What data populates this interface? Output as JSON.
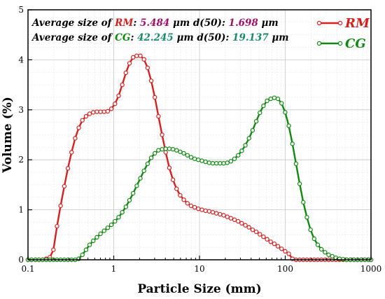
{
  "chart_data": {
    "type": "line",
    "xlabel": "Particle Size (mm)",
    "ylabel": "Volume (%)",
    "x_scale": "log",
    "xlim": [
      0.1,
      1000
    ],
    "ylim": [
      0,
      5
    ],
    "x_ticks": [
      {
        "value": 0.1,
        "label": "0.1"
      },
      {
        "value": 1,
        "label": "1"
      },
      {
        "value": 10,
        "label": "10"
      },
      {
        "value": 100,
        "label": "100"
      },
      {
        "value": 1000,
        "label": "1000"
      }
    ],
    "y_ticks": [
      {
        "value": 0,
        "label": "0"
      },
      {
        "value": 1,
        "label": "1"
      },
      {
        "value": 2,
        "label": "2"
      },
      {
        "value": 3,
        "label": "3"
      },
      {
        "value": 4,
        "label": "4"
      },
      {
        "value": 5,
        "label": "5"
      }
    ],
    "grid": true,
    "legend_position": "top-right",
    "series": [
      {
        "name": "RM",
        "color": "#d42020",
        "marker_fill": "#ffffff",
        "points": [
          [
            0.1,
            0
          ],
          [
            0.11,
            0
          ],
          [
            0.122,
            0
          ],
          [
            0.134,
            0
          ],
          [
            0.148,
            0
          ],
          [
            0.163,
            0.02
          ],
          [
            0.18,
            0.05
          ],
          [
            0.198,
            0.2
          ],
          [
            0.218,
            0.67
          ],
          [
            0.24,
            1.08
          ],
          [
            0.265,
            1.47
          ],
          [
            0.292,
            1.83
          ],
          [
            0.322,
            2.15
          ],
          [
            0.355,
            2.43
          ],
          [
            0.391,
            2.64
          ],
          [
            0.431,
            2.79
          ],
          [
            0.475,
            2.87
          ],
          [
            0.523,
            2.92
          ],
          [
            0.577,
            2.95
          ],
          [
            0.636,
            2.96
          ],
          [
            0.701,
            2.96
          ],
          [
            0.772,
            2.96
          ],
          [
            0.851,
            2.97
          ],
          [
            0.938,
            3.02
          ],
          [
            1.034,
            3.12
          ],
          [
            1.14,
            3.28
          ],
          [
            1.256,
            3.5
          ],
          [
            1.385,
            3.74
          ],
          [
            1.526,
            3.93
          ],
          [
            1.682,
            4.05
          ],
          [
            1.854,
            4.08
          ],
          [
            2.043,
            4.08
          ],
          [
            2.252,
            4.01
          ],
          [
            2.482,
            3.84
          ],
          [
            2.735,
            3.58
          ],
          [
            3.015,
            3.25
          ],
          [
            3.322,
            2.87
          ],
          [
            3.662,
            2.5
          ],
          [
            4.036,
            2.15
          ],
          [
            4.448,
            1.84
          ],
          [
            4.902,
            1.6
          ],
          [
            5.403,
            1.42
          ],
          [
            5.954,
            1.29
          ],
          [
            6.562,
            1.2
          ],
          [
            7.232,
            1.13
          ],
          [
            7.971,
            1.08
          ],
          [
            8.785,
            1.05
          ],
          [
            9.682,
            1.02
          ],
          [
            10.67,
            1.0
          ],
          [
            11.76,
            0.98
          ],
          [
            12.96,
            0.97
          ],
          [
            14.29,
            0.95
          ],
          [
            15.75,
            0.93
          ],
          [
            17.35,
            0.91
          ],
          [
            19.13,
            0.89
          ],
          [
            21.08,
            0.86
          ],
          [
            23.23,
            0.83
          ],
          [
            25.6,
            0.8
          ],
          [
            28.22,
            0.77
          ],
          [
            31.1,
            0.73
          ],
          [
            34.27,
            0.69
          ],
          [
            37.77,
            0.65
          ],
          [
            41.63,
            0.6
          ],
          [
            45.88,
            0.56
          ],
          [
            50.56,
            0.51
          ],
          [
            55.72,
            0.46
          ],
          [
            61.41,
            0.41
          ],
          [
            67.68,
            0.36
          ],
          [
            74.59,
            0.32
          ],
          [
            82.2,
            0.27
          ],
          [
            90.59,
            0.22
          ],
          [
            99.84,
            0.17
          ],
          [
            110,
            0.12
          ],
          [
            121.3,
            0.02
          ],
          [
            133.6,
            0
          ],
          [
            147.3,
            0
          ],
          [
            162.3,
            0
          ],
          [
            178.9,
            0
          ],
          [
            197.2,
            0
          ],
          [
            217.3,
            0
          ],
          [
            239.5,
            0
          ],
          [
            263.9,
            0
          ],
          [
            290.9,
            0
          ],
          [
            320.6,
            0
          ],
          [
            353.3,
            0
          ],
          [
            389.4,
            0
          ],
          [
            429.1,
            0
          ],
          [
            472.9,
            0
          ],
          [
            521.2,
            0
          ],
          [
            574.4,
            0
          ],
          [
            633.1,
            0
          ],
          [
            697.7,
            0
          ],
          [
            768.9,
            0
          ],
          [
            847.4,
            0
          ],
          [
            933.9,
            0
          ],
          [
            1000,
            0
          ]
        ]
      },
      {
        "name": "CG",
        "color": "#118811",
        "marker_fill": "#ffffff",
        "points": [
          [
            0.1,
            0
          ],
          [
            0.11,
            0
          ],
          [
            0.122,
            0
          ],
          [
            0.134,
            0
          ],
          [
            0.148,
            0
          ],
          [
            0.163,
            0
          ],
          [
            0.18,
            0
          ],
          [
            0.198,
            0
          ],
          [
            0.218,
            0
          ],
          [
            0.24,
            0
          ],
          [
            0.265,
            0
          ],
          [
            0.292,
            0
          ],
          [
            0.322,
            0
          ],
          [
            0.355,
            0
          ],
          [
            0.391,
            0.02
          ],
          [
            0.431,
            0.1
          ],
          [
            0.475,
            0.2
          ],
          [
            0.523,
            0.3
          ],
          [
            0.577,
            0.38
          ],
          [
            0.636,
            0.45
          ],
          [
            0.701,
            0.52
          ],
          [
            0.772,
            0.58
          ],
          [
            0.851,
            0.64
          ],
          [
            0.938,
            0.7
          ],
          [
            1.034,
            0.77
          ],
          [
            1.14,
            0.85
          ],
          [
            1.256,
            0.95
          ],
          [
            1.385,
            1.06
          ],
          [
            1.526,
            1.19
          ],
          [
            1.682,
            1.33
          ],
          [
            1.854,
            1.48
          ],
          [
            2.043,
            1.63
          ],
          [
            2.252,
            1.78
          ],
          [
            2.482,
            1.92
          ],
          [
            2.735,
            2.04
          ],
          [
            3.015,
            2.13
          ],
          [
            3.322,
            2.19
          ],
          [
            3.662,
            2.21
          ],
          [
            4.036,
            2.22
          ],
          [
            4.448,
            2.22
          ],
          [
            4.902,
            2.21
          ],
          [
            5.403,
            2.19
          ],
          [
            5.954,
            2.16
          ],
          [
            6.562,
            2.13
          ],
          [
            7.232,
            2.09
          ],
          [
            7.971,
            2.05
          ],
          [
            8.785,
            2.02
          ],
          [
            9.682,
            2.0
          ],
          [
            10.67,
            1.98
          ],
          [
            11.76,
            1.96
          ],
          [
            12.96,
            1.94
          ],
          [
            14.29,
            1.93
          ],
          [
            15.75,
            1.93
          ],
          [
            17.35,
            1.93
          ],
          [
            19.13,
            1.93
          ],
          [
            21.08,
            1.94
          ],
          [
            23.23,
            1.97
          ],
          [
            25.6,
            2.02
          ],
          [
            28.22,
            2.09
          ],
          [
            31.1,
            2.18
          ],
          [
            34.27,
            2.29
          ],
          [
            37.77,
            2.43
          ],
          [
            41.63,
            2.59
          ],
          [
            45.88,
            2.77
          ],
          [
            50.56,
            2.94
          ],
          [
            55.72,
            3.08
          ],
          [
            61.41,
            3.18
          ],
          [
            67.68,
            3.22
          ],
          [
            74.59,
            3.24
          ],
          [
            82.2,
            3.22
          ],
          [
            90.59,
            3.13
          ],
          [
            99.84,
            2.95
          ],
          [
            110,
            2.68
          ],
          [
            121.3,
            2.32
          ],
          [
            133.6,
            1.92
          ],
          [
            147.3,
            1.52
          ],
          [
            162.3,
            1.15
          ],
          [
            178.9,
            0.85
          ],
          [
            197.2,
            0.6
          ],
          [
            217.3,
            0.42
          ],
          [
            239.5,
            0.3
          ],
          [
            263.9,
            0.21
          ],
          [
            290.9,
            0.15
          ],
          [
            320.6,
            0.1
          ],
          [
            353.3,
            0.07
          ],
          [
            389.4,
            0.04
          ],
          [
            429.1,
            0.02
          ],
          [
            472.9,
            0.01
          ],
          [
            521.2,
            0
          ],
          [
            574.4,
            0
          ],
          [
            633.1,
            0
          ],
          [
            697.7,
            0
          ],
          [
            768.9,
            0
          ],
          [
            847.4,
            0
          ],
          [
            933.9,
            0
          ],
          [
            1000,
            0
          ]
        ]
      }
    ]
  },
  "annotations": [
    {
      "parts": [
        {
          "text": "Average size of ",
          "color": "#000000"
        },
        {
          "text": "RM",
          "color": "#d42020"
        },
        {
          "text": ": ",
          "color": "#000000"
        },
        {
          "text": "5.484",
          "color": "#a0106a"
        },
        {
          "text": " μm   d(50): ",
          "color": "#000000"
        },
        {
          "text": "1.698",
          "color": "#a0106a"
        },
        {
          "text": " μm",
          "color": "#000000"
        }
      ]
    },
    {
      "parts": [
        {
          "text": "Average size of ",
          "color": "#000000"
        },
        {
          "text": "CG",
          "color": "#118811"
        },
        {
          "text": ": ",
          "color": "#000000"
        },
        {
          "text": "42.245",
          "color": "#1a8a6a"
        },
        {
          "text": " μm   d(50): ",
          "color": "#000000"
        },
        {
          "text": "19.137",
          "color": "#1a8a6a"
        },
        {
          "text": " μm",
          "color": "#000000"
        }
      ]
    }
  ]
}
